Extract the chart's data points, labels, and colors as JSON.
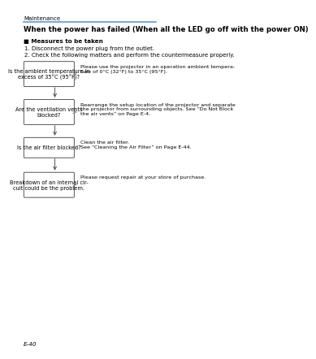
{
  "page_title": "Maintenance",
  "section_title": "When the power has failed (When all the LED go off with the power ON)",
  "header_line_color": "#5B9BD5",
  "bullet_header": "Measures to be taken",
  "steps": [
    "1. Disconnect the power plug from the outlet.",
    "2. Check the following matters and perform the countermeasure properly."
  ],
  "boxes": [
    {
      "label": "Is the ambient temperature in\nexcess of 35°C (95°F)?",
      "description": "Please use the projector in an operation ambient tempera-\nture of 0°C (32°F) to 35°C (95°F)."
    },
    {
      "label": "Are the ventilation vents\nblocked?",
      "description": "Rearrange the setup location of the projector and separate\nthe projector from surrounding objects. See “Do Not Block\nthe air vents” on Page E-4."
    },
    {
      "label": "Is the air filter blocked?",
      "description": "Clean the air filter.\nSee “Cleaning the Air Filter” on Page E-44."
    },
    {
      "label": "Breakdown of an internal cir-\ncuit could be the problem.",
      "description": "Please request repair at your store of purchase."
    }
  ],
  "footer_text": "E-40",
  "bg_color": "#ffffff",
  "box_edge_color": "#555555",
  "text_color": "#000000",
  "arrow_color": "#888888"
}
